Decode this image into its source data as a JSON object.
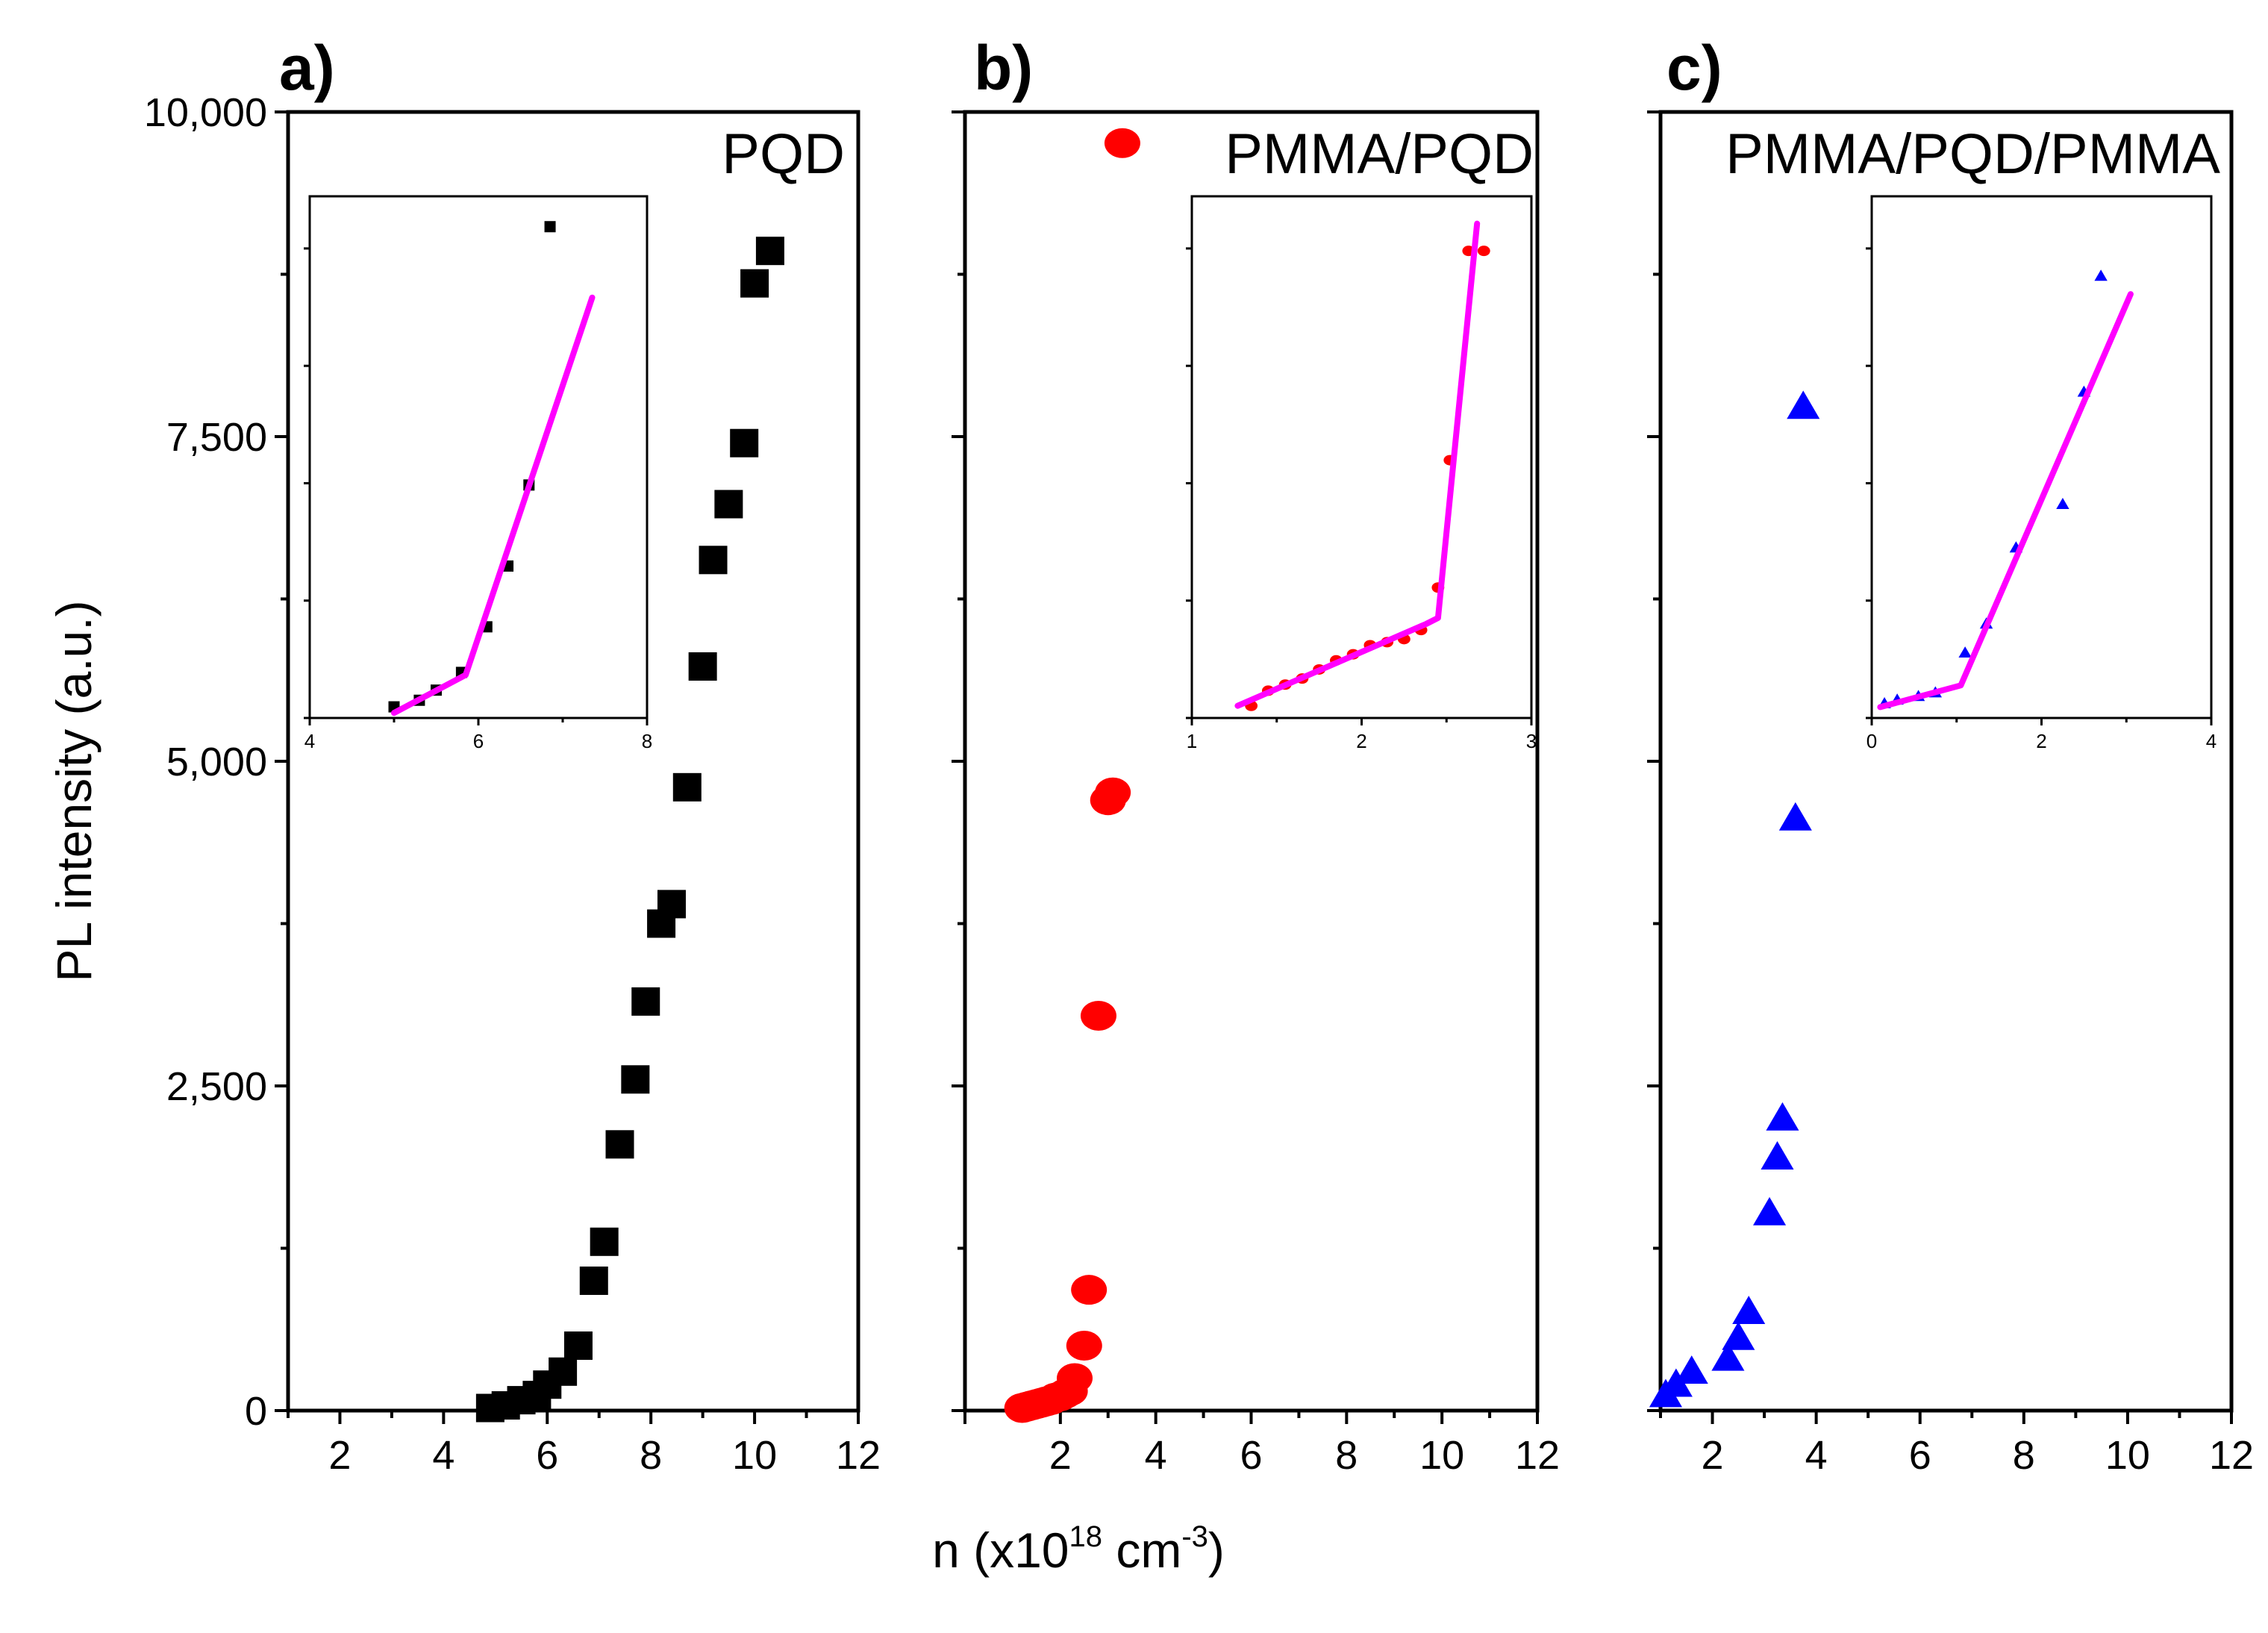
{
  "figure": {
    "ylabel": "PL intensity (a.u.)",
    "xlabel_parts": {
      "base": "n (x10",
      "exp1": "18",
      "mid": " cm",
      "exp2": "-3",
      "end": ")"
    },
    "fit_color": "#ff00ff"
  },
  "chart_data": [
    {
      "type": "scatter",
      "panel": "a)",
      "title": "PQD",
      "marker": "square",
      "color": "#000000",
      "xlim": [
        1,
        12
      ],
      "ylim": [
        0,
        10000
      ],
      "xticks": [
        "2",
        "4",
        "6",
        "8",
        "10",
        "12"
      ],
      "yticks": [
        "0",
        "2,500",
        "5,000",
        "7,500",
        "10,000"
      ],
      "x": [
        4.9,
        5.2,
        5.5,
        5.8,
        6.0,
        6.3,
        6.6,
        6.9,
        7.1,
        7.4,
        7.7,
        7.9,
        8.2,
        8.4,
        8.7,
        9.0,
        9.2,
        9.5,
        9.8,
        10.0,
        10.3
      ],
      "y": [
        20,
        40,
        80,
        120,
        200,
        300,
        500,
        1000,
        1300,
        2050,
        2550,
        3150,
        3750,
        3900,
        4800,
        5730,
        6550,
        6980,
        7450,
        8680,
        8930
      ],
      "inset": {
        "xlim": [
          4,
          8
        ],
        "xticks": [
          "4",
          "6",
          "8"
        ],
        "points": [
          [
            5.0,
            0.012
          ],
          [
            5.3,
            0.025
          ],
          [
            5.5,
            0.045
          ],
          [
            5.8,
            0.08
          ],
          [
            6.1,
            0.17
          ],
          [
            6.35,
            0.29
          ],
          [
            6.6,
            0.45
          ],
          [
            6.85,
            0.96
          ]
        ],
        "fit": [
          [
            5.0,
            0.0
          ],
          [
            5.85,
            0.075
          ],
          [
            7.35,
            0.82
          ]
        ],
        "ylim": [
          -0.01,
          1.02
        ]
      }
    },
    {
      "type": "scatter",
      "panel": "b)",
      "title": "PMMA/PQD",
      "marker": "circle",
      "color": "#ff0000",
      "xlim": [
        0,
        12
      ],
      "ylim": [
        0,
        10000
      ],
      "xticks": [
        "2",
        "4",
        "6",
        "8",
        "10",
        "12"
      ],
      "yticks": [],
      "x": [
        1.2,
        1.3,
        1.4,
        1.5,
        1.6,
        1.7,
        1.8,
        1.9,
        2.0,
        2.1,
        2.2,
        2.3,
        2.5,
        2.6,
        2.8,
        3.0,
        3.1,
        3.3
      ],
      "y": [
        20,
        30,
        40,
        50,
        60,
        70,
        80,
        100,
        110,
        130,
        150,
        250,
        500,
        930,
        3040,
        4700,
        4760,
        9760
      ],
      "inset": {
        "xlim": [
          1,
          3
        ],
        "xticks": [
          "1",
          "2",
          "3"
        ],
        "points": [
          [
            1.35,
            0.01
          ],
          [
            1.45,
            0.035
          ],
          [
            1.55,
            0.045
          ],
          [
            1.65,
            0.055
          ],
          [
            1.75,
            0.07
          ],
          [
            1.85,
            0.085
          ],
          [
            1.95,
            0.095
          ],
          [
            2.05,
            0.11
          ],
          [
            2.15,
            0.115
          ],
          [
            2.25,
            0.12
          ],
          [
            2.35,
            0.135
          ],
          [
            2.45,
            0.205
          ],
          [
            2.52,
            0.415
          ],
          [
            2.63,
            0.76
          ],
          [
            2.72,
            0.76
          ]
        ],
        "fit": [
          [
            1.27,
            0.01
          ],
          [
            2.38,
            0.145
          ],
          [
            2.45,
            0.155
          ],
          [
            2.68,
            0.805
          ]
        ],
        "ylim": [
          -0.01,
          0.85
        ]
      }
    },
    {
      "type": "scatter",
      "panel": "c)",
      "title": "PMMA/PQD/PMMA",
      "marker": "triangle",
      "color": "#0000ff",
      "xlim": [
        1,
        12
      ],
      "ylim": [
        0,
        10000
      ],
      "xticks": [
        "2",
        "4",
        "6",
        "8",
        "10",
        "12"
      ],
      "yticks": [],
      "x": [
        1.1,
        1.3,
        1.6,
        2.3,
        2.5,
        2.7,
        3.1,
        3.25,
        3.35,
        3.6,
        3.75
      ],
      "y": [
        120,
        200,
        300,
        400,
        560,
        760,
        1520,
        1950,
        2250,
        4560,
        7730
      ],
      "inset": {
        "xlim": [
          0,
          4
        ],
        "xticks": [
          "0",
          "2",
          "4"
        ],
        "points": [
          [
            0.15,
            0.01
          ],
          [
            0.3,
            0.015
          ],
          [
            0.55,
            0.02
          ],
          [
            0.75,
            0.025
          ],
          [
            1.1,
            0.08
          ],
          [
            1.35,
            0.12
          ],
          [
            1.7,
            0.225
          ],
          [
            2.25,
            0.285
          ],
          [
            2.5,
            0.44
          ],
          [
            2.7,
            0.6
          ]
        ],
        "fit": [
          [
            0.1,
            0.005
          ],
          [
            1.05,
            0.035
          ],
          [
            3.05,
            0.575
          ]
        ],
        "ylim": [
          -0.01,
          0.71
        ]
      }
    }
  ]
}
